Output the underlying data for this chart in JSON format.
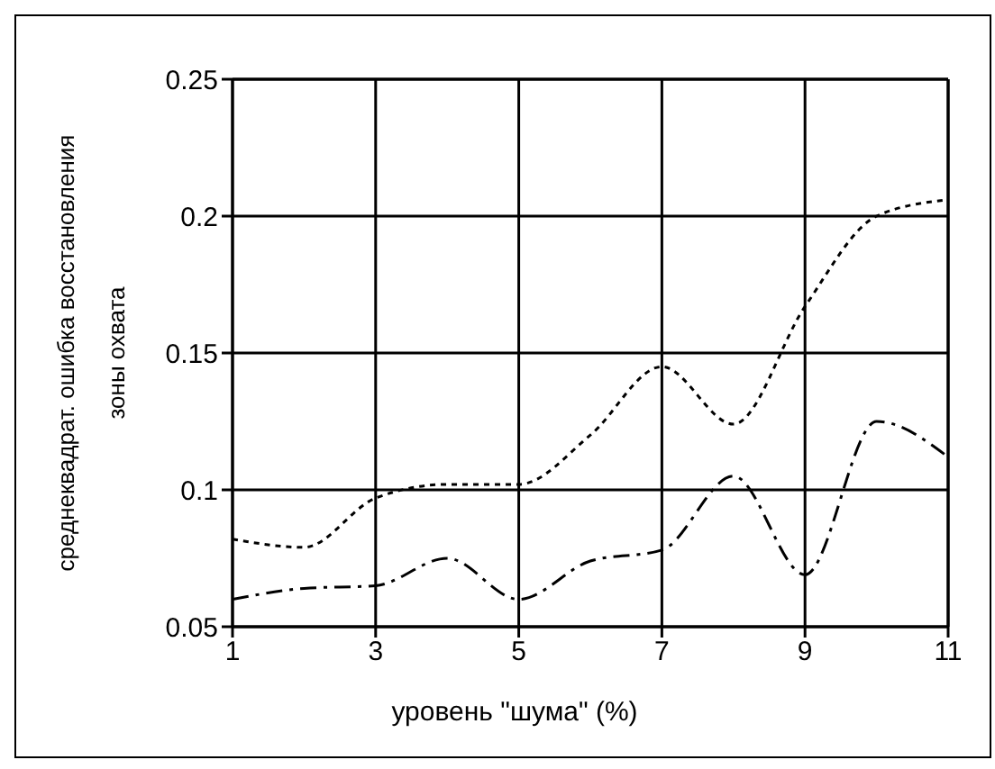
{
  "chart_data": {
    "type": "line",
    "xlabel": "уровень \"шума\" (%)",
    "ylabel": "среднеквадрат. ошибка восстановления зоны охвата",
    "x": [
      1,
      2,
      3,
      4,
      5,
      6,
      7,
      8,
      9,
      10,
      11
    ],
    "series": [
      {
        "color": "#000000",
        "line_style": "dotted",
        "values": [
          0.082,
          0.079,
          0.097,
          0.102,
          0.102,
          0.12,
          0.145,
          0.124,
          0.167,
          0.2,
          0.206
        ]
      },
      {
        "color": "#000000",
        "line_style": "dashed",
        "values": [
          0.06,
          0.064,
          0.065,
          0.075,
          0.06,
          0.074,
          0.078,
          0.105,
          0.069,
          0.125,
          0.112
        ]
      }
    ],
    "xlim": [
      1,
      11
    ],
    "xticks": [
      1,
      3,
      5,
      7,
      9,
      11
    ],
    "ylim": [
      0.05,
      0.25
    ],
    "yticks": [
      0.05,
      0.1,
      0.15,
      0.2,
      0.25
    ],
    "grid": true,
    "marker": "none"
  }
}
